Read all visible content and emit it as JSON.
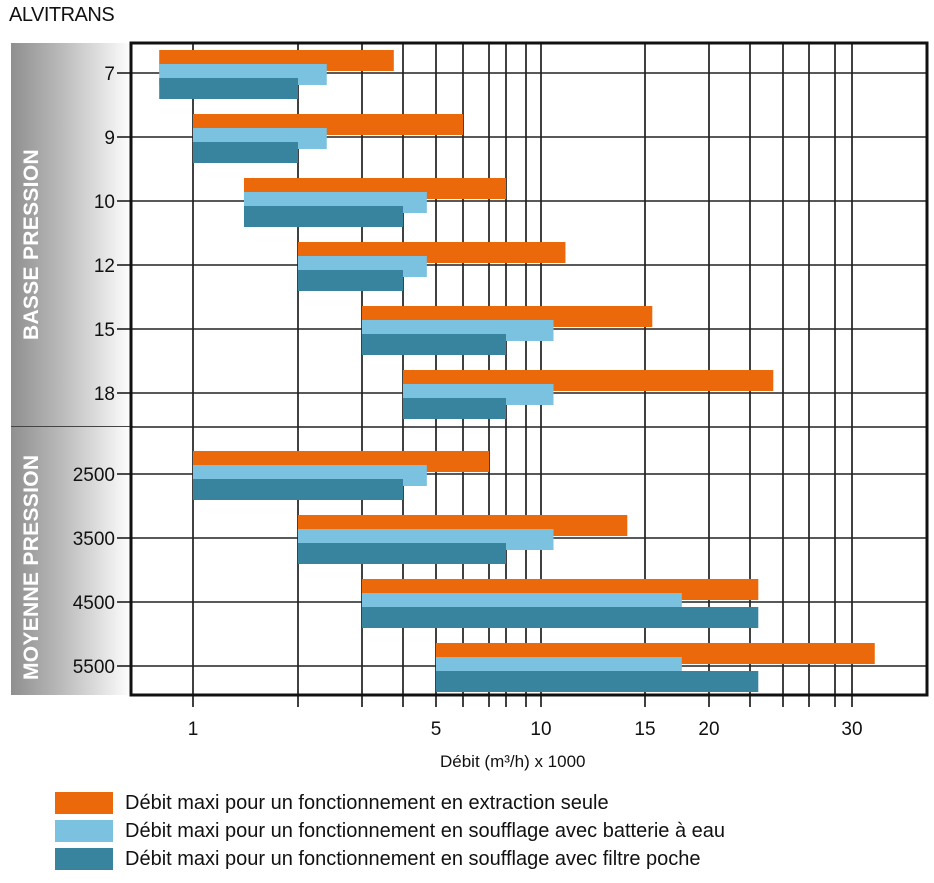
{
  "brand": "ALVITRANS",
  "groups": [
    {
      "label": "BASSE PRESSION",
      "rows": [
        "7",
        "9",
        "10",
        "12",
        "15",
        "18"
      ]
    },
    {
      "label": "MOYENNE PRESSION",
      "rows": [
        "2500",
        "3500",
        "4500",
        "5500"
      ]
    }
  ],
  "chart_data": {
    "type": "bar",
    "orientation": "horizontal-floating",
    "title": "ALVITRANS",
    "xlabel": "Débit (m³/h) x 1000",
    "ylabel": "",
    "x_scale": "log",
    "xlim": [
      0.6,
      45
    ],
    "x_tick_labels": [
      "1",
      "5",
      "10",
      "15",
      "20",
      "30"
    ],
    "grid": true,
    "legend_position": "bottom",
    "categories": [
      "7",
      "9",
      "10",
      "12",
      "15",
      "18",
      "2500",
      "3500",
      "4500",
      "5500"
    ],
    "category_groups": [
      {
        "name": "BASSE PRESSION",
        "categories": [
          "7",
          "9",
          "10",
          "12",
          "15",
          "18"
        ]
      },
      {
        "name": "MOYENNE PRESSION",
        "categories": [
          "2500",
          "3500",
          "4500",
          "5500"
        ]
      }
    ],
    "series": [
      {
        "name": "Débit maxi pour un fonctionnement en extraction seule",
        "color": "#eb690b",
        "start": [
          0.8,
          1,
          1.4,
          2,
          3,
          4,
          1,
          2,
          3,
          5
        ],
        "end": [
          3.75,
          6,
          8,
          11,
          15.5,
          24,
          7,
          14,
          23,
          32
        ]
      },
      {
        "name": "Débit maxi pour un fonctionnement en soufflage avec batterie à eau",
        "color": "#7bc2e0",
        "start": [
          0.8,
          1,
          1.4,
          2,
          3,
          4,
          1,
          2,
          3,
          5
        ],
        "end": [
          2.4,
          2.4,
          4.7,
          4.7,
          10.5,
          10.5,
          4.7,
          10.5,
          17.7,
          17.7
        ]
      },
      {
        "name": "Débit maxi pour un fonctionnement en soufflage avec filtre poche",
        "color": "#38849f",
        "start": [
          0.8,
          1,
          1.4,
          2,
          3,
          4,
          1,
          2,
          3,
          5
        ],
        "end": [
          2,
          2,
          4,
          4,
          8,
          8,
          4,
          8,
          23,
          23
        ]
      }
    ]
  }
}
